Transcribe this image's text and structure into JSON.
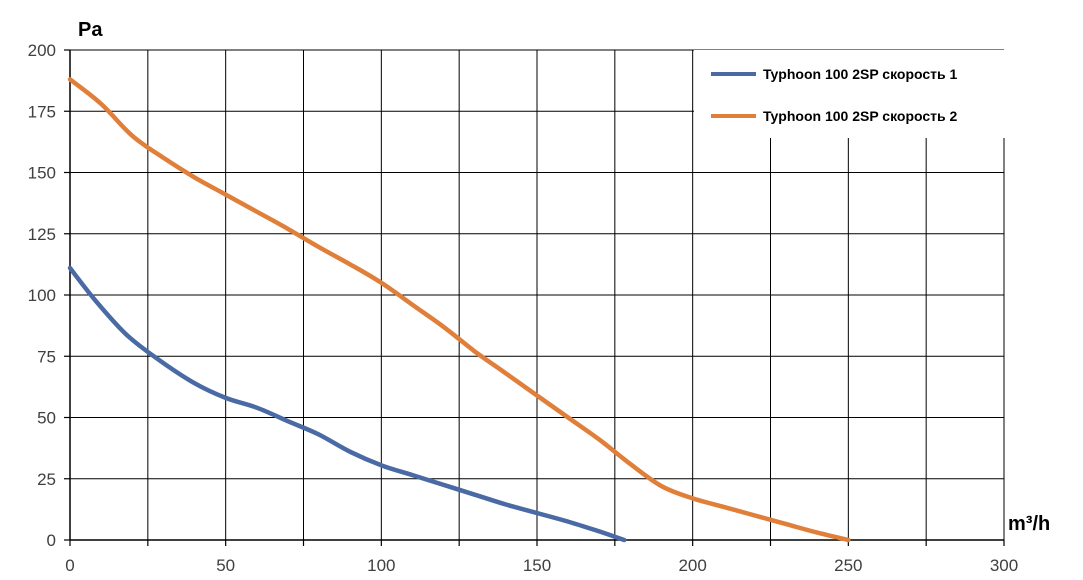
{
  "chart_data": {
    "type": "line",
    "xlabel": "m³/h",
    "ylabel": "Pa",
    "xlim": [
      0,
      300
    ],
    "ylim": [
      0,
      200
    ],
    "x_ticks": [
      0,
      25,
      50,
      75,
      100,
      125,
      150,
      175,
      200,
      225,
      250,
      275,
      300
    ],
    "x_tick_labels": [
      "0",
      "50",
      "100",
      "150",
      "200",
      "250",
      "300"
    ],
    "x_tick_label_values": [
      0,
      50,
      100,
      150,
      200,
      250,
      300
    ],
    "y_ticks": [
      0,
      25,
      50,
      75,
      100,
      125,
      150,
      175,
      200
    ],
    "y_tick_labels": [
      "0",
      "25",
      "50",
      "75",
      "100",
      "125",
      "150",
      "175",
      "200"
    ],
    "grid": true,
    "legend_position": "top-right",
    "series": [
      {
        "name": "Typhoon 100 2SP скорость 1",
        "color": "#4a6aa5",
        "points": [
          [
            0,
            111
          ],
          [
            8,
            98
          ],
          [
            18,
            84
          ],
          [
            28,
            74
          ],
          [
            40,
            64
          ],
          [
            50,
            58
          ],
          [
            60,
            54
          ],
          [
            70,
            48.5
          ],
          [
            80,
            43
          ],
          [
            90,
            36
          ],
          [
            100,
            30.5
          ],
          [
            110,
            26.5
          ],
          [
            120,
            22.5
          ],
          [
            130,
            18.5
          ],
          [
            140,
            14.5
          ],
          [
            150,
            11
          ],
          [
            160,
            7.5
          ],
          [
            170,
            3.5
          ],
          [
            178,
            0
          ]
        ]
      },
      {
        "name": "Typhoon 100 2SP скорость 2",
        "color": "#e07f3a",
        "points": [
          [
            0,
            188
          ],
          [
            10,
            178
          ],
          [
            20,
            165
          ],
          [
            30,
            156
          ],
          [
            40,
            148
          ],
          [
            50,
            141
          ],
          [
            60,
            134
          ],
          [
            70,
            127
          ],
          [
            80,
            119.5
          ],
          [
            90,
            112.5
          ],
          [
            100,
            105
          ],
          [
            110,
            96
          ],
          [
            120,
            87
          ],
          [
            130,
            77
          ],
          [
            140,
            68
          ],
          [
            150,
            59
          ],
          [
            160,
            50
          ],
          [
            170,
            41
          ],
          [
            180,
            31
          ],
          [
            190,
            22
          ],
          [
            200,
            17
          ],
          [
            210,
            13.5
          ],
          [
            220,
            10
          ],
          [
            230,
            6.5
          ],
          [
            240,
            3
          ],
          [
            250,
            0
          ]
        ]
      }
    ]
  }
}
